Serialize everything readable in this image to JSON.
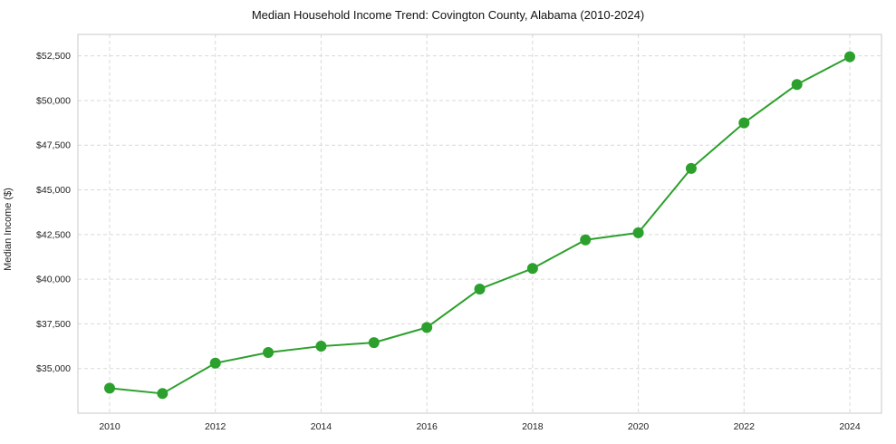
{
  "chart_data": {
    "type": "line",
    "title": "Median Household Income Trend: Covington County, Alabama (2010-2024)",
    "xlabel": "",
    "ylabel": "Median Income ($)",
    "x": [
      2010,
      2011,
      2012,
      2013,
      2014,
      2015,
      2016,
      2017,
      2018,
      2019,
      2020,
      2021,
      2022,
      2023,
      2024
    ],
    "values": [
      33900,
      33600,
      35300,
      35900,
      36250,
      36450,
      37300,
      39450,
      40600,
      42200,
      42600,
      46200,
      48750,
      50900,
      52450
    ],
    "ylim": [
      32500,
      53700
    ],
    "yticks": [
      35000,
      37500,
      40000,
      42500,
      45000,
      47500,
      50000,
      52500
    ],
    "ytick_labels": [
      "$35,000",
      "$37,500",
      "$40,000",
      "$42,500",
      "$45,000",
      "$47,500",
      "$50,000",
      "$52,500"
    ],
    "xtick_labels": [
      "2010",
      "2012",
      "2014",
      "2016",
      "2018",
      "2020",
      "2022",
      "2024"
    ],
    "xtick_years": [
      2010,
      2012,
      2014,
      2016,
      2018,
      2020,
      2022,
      2024
    ],
    "grid": true,
    "legend": "none",
    "line_color": "#2ca02c",
    "marker_color": "#2ca02c",
    "grid_color": "#d9d9d9",
    "frame_color": "#c8c8c8",
    "tick_text_color": "#222222"
  }
}
